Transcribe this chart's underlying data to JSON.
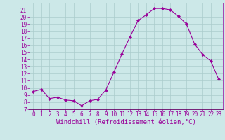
{
  "x": [
    0,
    1,
    2,
    3,
    4,
    5,
    6,
    7,
    8,
    9,
    10,
    11,
    12,
    13,
    14,
    15,
    16,
    17,
    18,
    19,
    20,
    21,
    22,
    23
  ],
  "y": [
    9.5,
    9.8,
    8.5,
    8.7,
    8.3,
    8.2,
    7.5,
    8.2,
    8.4,
    9.7,
    12.2,
    14.8,
    17.2,
    19.5,
    20.3,
    21.2,
    21.2,
    21.0,
    20.1,
    19.0,
    16.2,
    14.7,
    13.8,
    11.2
  ],
  "line_color": "#990099",
  "marker": "D",
  "marker_size": 2,
  "bg_color": "#cce8e8",
  "grid_color": "#aacccc",
  "xlabel": "Windchill (Refroidissement éolien,°C)",
  "xlabel_color": "#990099",
  "tick_color": "#990099",
  "ylim": [
    7,
    22
  ],
  "xlim": [
    -0.5,
    23.5
  ],
  "yticks": [
    7,
    8,
    9,
    10,
    11,
    12,
    13,
    14,
    15,
    16,
    17,
    18,
    19,
    20,
    21
  ],
  "xticks": [
    0,
    1,
    2,
    3,
    4,
    5,
    6,
    7,
    8,
    9,
    10,
    11,
    12,
    13,
    14,
    15,
    16,
    17,
    18,
    19,
    20,
    21,
    22,
    23
  ],
  "spine_color": "#990099",
  "spine_bottom_color": "#660066",
  "label_fontsize": 5.5,
  "xlabel_fontsize": 6.5
}
